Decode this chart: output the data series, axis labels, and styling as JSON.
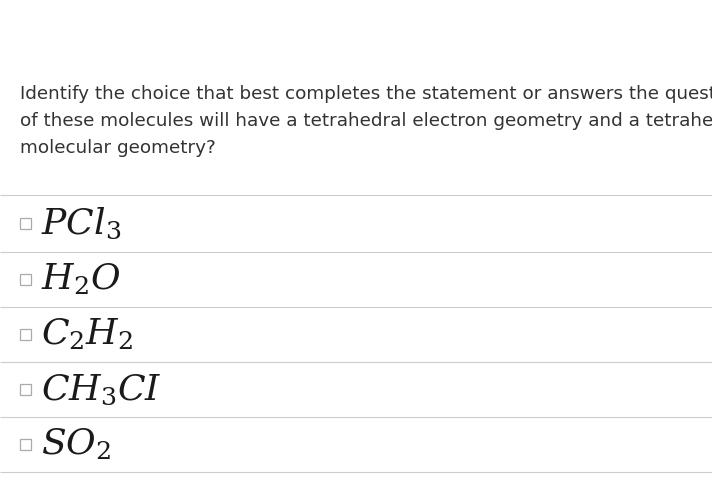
{
  "background_color": "#ffffff",
  "question_lines": [
    "Identify the choice that best completes the statement or answers the question. Which",
    "of these molecules will have a tetrahedral electron geometry and a tetrahedral",
    "molecular geometry?"
  ],
  "question_fontsize": 13.2,
  "question_color": "#333333",
  "choices": [
    {
      "formula": "$PCl_3$",
      "display": "PCl_{3}"
    },
    {
      "formula": "$H_2O$",
      "display": "H_{2}O"
    },
    {
      "formula": "$C_2H_2$",
      "display": "C_{2}H_{2}"
    },
    {
      "formula": "$CH_3CI$",
      "display": "CH_{3}CI"
    },
    {
      "formula": "$SO_2$",
      "display": "SO_{2}"
    }
  ],
  "choice_fontsize": 26,
  "formula_color": "#1a1a1a",
  "checkbox_color": "#aaaaaa",
  "separator_color": "#cccccc",
  "separator_linewidth": 0.8
}
